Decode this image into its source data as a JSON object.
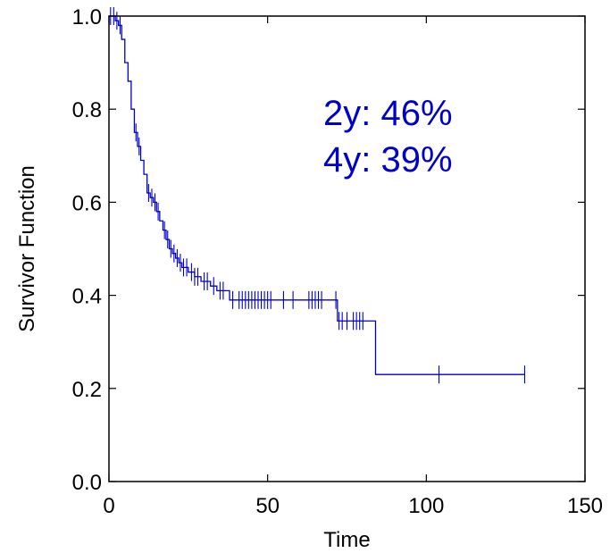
{
  "chart_data": {
    "type": "line",
    "xlabel": "Time",
    "ylabel": "Survivor Function",
    "xlim": [
      0,
      150
    ],
    "ylim": [
      0,
      1.0
    ],
    "xticks": [
      0,
      50,
      100,
      150
    ],
    "xtick_labels": [
      "0",
      "50",
      "100",
      "150"
    ],
    "yticks": [
      0,
      0.2,
      0.4,
      0.6,
      0.8,
      1.0
    ],
    "ytick_labels": [
      "0.0",
      "0.2",
      "0.4",
      "0.6",
      "0.8",
      "1.0"
    ],
    "grid": false,
    "line_color": "#0000cc",
    "annotations": [
      "2y: 46%",
      "4y: 39%"
    ],
    "series": [
      {
        "step": "post",
        "x": [
          0,
          2,
          3,
          4,
          5,
          6,
          7,
          8,
          9,
          10,
          11,
          12,
          13,
          14,
          15,
          16,
          17,
          18,
          19,
          20,
          21,
          22,
          23,
          24,
          25,
          27,
          29,
          30,
          32,
          34,
          38,
          72,
          84,
          131
        ],
        "y": [
          1.0,
          0.99,
          0.98,
          0.95,
          0.9,
          0.86,
          0.8,
          0.75,
          0.72,
          0.69,
          0.66,
          0.62,
          0.61,
          0.6,
          0.58,
          0.56,
          0.54,
          0.52,
          0.5,
          0.49,
          0.48,
          0.47,
          0.46,
          0.46,
          0.45,
          0.44,
          0.43,
          0.43,
          0.42,
          0.41,
          0.39,
          0.345,
          0.23,
          0.23
        ],
        "censored": [
          {
            "x": 0.5,
            "y": 1.0
          },
          {
            "x": 1.5,
            "y": 1.0
          },
          {
            "x": 2.5,
            "y": 0.99
          },
          {
            "x": 3.5,
            "y": 0.98
          },
          {
            "x": 8.5,
            "y": 0.75
          },
          {
            "x": 9.5,
            "y": 0.72
          },
          {
            "x": 12.5,
            "y": 0.62
          },
          {
            "x": 13.5,
            "y": 0.61
          },
          {
            "x": 14.5,
            "y": 0.6
          },
          {
            "x": 15.5,
            "y": 0.58
          },
          {
            "x": 17.5,
            "y": 0.54
          },
          {
            "x": 18.5,
            "y": 0.52
          },
          {
            "x": 19.5,
            "y": 0.5
          },
          {
            "x": 20.5,
            "y": 0.49
          },
          {
            "x": 21.5,
            "y": 0.48
          },
          {
            "x": 22.5,
            "y": 0.47
          },
          {
            "x": 23.5,
            "y": 0.46
          },
          {
            "x": 24.5,
            "y": 0.46
          },
          {
            "x": 26,
            "y": 0.45
          },
          {
            "x": 27,
            "y": 0.44
          },
          {
            "x": 28,
            "y": 0.44
          },
          {
            "x": 30,
            "y": 0.43
          },
          {
            "x": 31,
            "y": 0.43
          },
          {
            "x": 33,
            "y": 0.42
          },
          {
            "x": 35,
            "y": 0.41
          },
          {
            "x": 36,
            "y": 0.41
          },
          {
            "x": 39,
            "y": 0.39
          },
          {
            "x": 41,
            "y": 0.39
          },
          {
            "x": 42,
            "y": 0.39
          },
          {
            "x": 43,
            "y": 0.39
          },
          {
            "x": 44,
            "y": 0.39
          },
          {
            "x": 45,
            "y": 0.39
          },
          {
            "x": 46,
            "y": 0.39
          },
          {
            "x": 47,
            "y": 0.39
          },
          {
            "x": 48,
            "y": 0.39
          },
          {
            "x": 49,
            "y": 0.39
          },
          {
            "x": 50,
            "y": 0.39
          },
          {
            "x": 51,
            "y": 0.39
          },
          {
            "x": 55,
            "y": 0.39
          },
          {
            "x": 58,
            "y": 0.39
          },
          {
            "x": 63,
            "y": 0.39
          },
          {
            "x": 64,
            "y": 0.39
          },
          {
            "x": 65,
            "y": 0.39
          },
          {
            "x": 66,
            "y": 0.39
          },
          {
            "x": 67,
            "y": 0.39
          },
          {
            "x": 71.5,
            "y": 0.39
          },
          {
            "x": 72.5,
            "y": 0.345
          },
          {
            "x": 73.5,
            "y": 0.345
          },
          {
            "x": 75,
            "y": 0.345
          },
          {
            "x": 77,
            "y": 0.345
          },
          {
            "x": 78,
            "y": 0.345
          },
          {
            "x": 79,
            "y": 0.345
          },
          {
            "x": 80,
            "y": 0.345
          },
          {
            "x": 104,
            "y": 0.23
          },
          {
            "x": 131,
            "y": 0.23
          }
        ]
      }
    ]
  }
}
